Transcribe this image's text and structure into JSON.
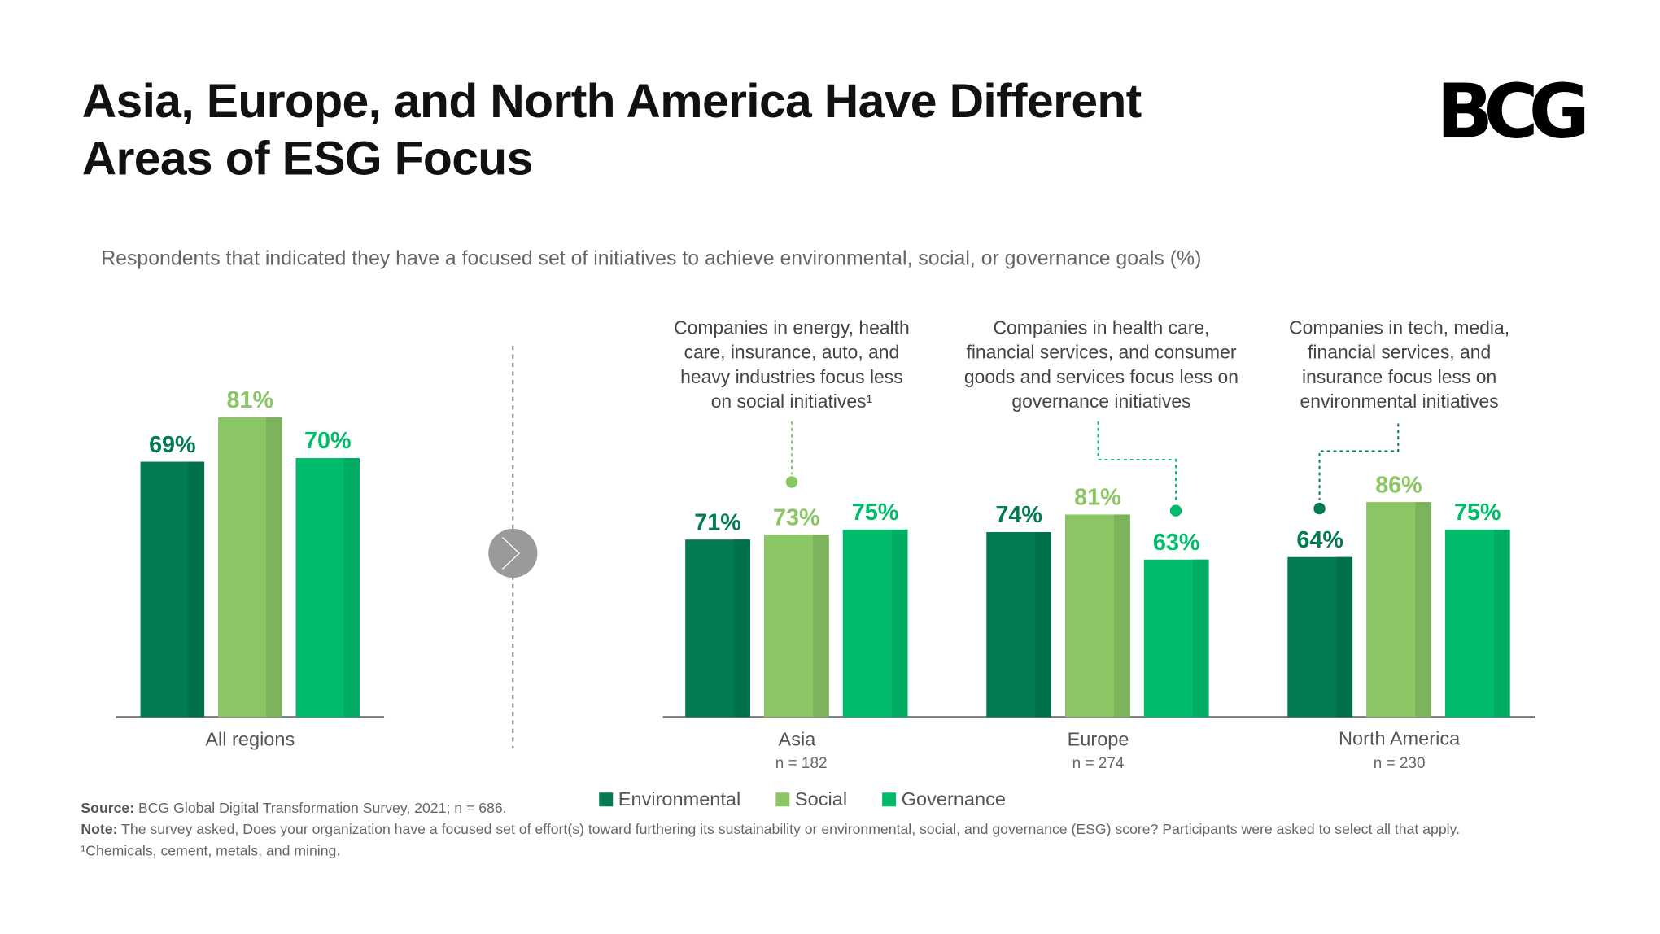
{
  "title_line1": "Asia, Europe, and North America Have Different",
  "title_line2": "Areas of ESG Focus",
  "logo": "BCG",
  "subtitle": "Respondents that indicated they have a focused set of initiatives to achieve environmental, social, or governance goals (%)",
  "colors": {
    "Environmental": "#027B50",
    "Social": "#8BC665",
    "Governance": "#00BC6A"
  },
  "chart_data": {
    "type": "bar",
    "series_names": [
      "Environmental",
      "Social",
      "Governance"
    ],
    "unit": "%",
    "ylim": [
      0,
      100
    ],
    "grid": false,
    "legend_position": "bottom",
    "groups": [
      {
        "category": "All regions",
        "n": "",
        "values": [
          69,
          81,
          70
        ]
      },
      {
        "category": "Asia",
        "n": "n = 182",
        "values": [
          71,
          73,
          75
        ]
      },
      {
        "category": "Europe",
        "n": "n = 274",
        "values": [
          74,
          81,
          63
        ]
      },
      {
        "category": "North America",
        "n": "n = 230",
        "values": [
          64,
          86,
          75
        ]
      }
    ],
    "annotations": [
      {
        "group": "Asia",
        "series": "Social",
        "lines": [
          "Companies in energy, health",
          "care, insurance, auto, and",
          "heavy industries focus less",
          "on social initiatives¹"
        ]
      },
      {
        "group": "Europe",
        "series": "Governance",
        "lines": [
          "Companies in health care,",
          "financial services, and consumer",
          "goods and services focus less on",
          "governance initiatives"
        ]
      },
      {
        "group": "North America",
        "series": "Environmental",
        "lines": [
          "Companies in tech, media,",
          "financial services, and",
          "insurance focus less on",
          "environmental initiatives"
        ]
      }
    ]
  },
  "legend": [
    "Environmental",
    "Social",
    "Governance"
  ],
  "footer": {
    "source_label": "Source:",
    "source_text": " BCG Global Digital Transformation Survey, 2021; n = 686.",
    "note_label": "Note:",
    "note_text": " The survey asked, Does your organization have a focused set of effort(s) toward furthering its sustainability or environmental, social, and governance (ESG) score? Participants were asked to select all that apply.",
    "footnote": "¹Chemicals, cement, metals, and mining."
  }
}
